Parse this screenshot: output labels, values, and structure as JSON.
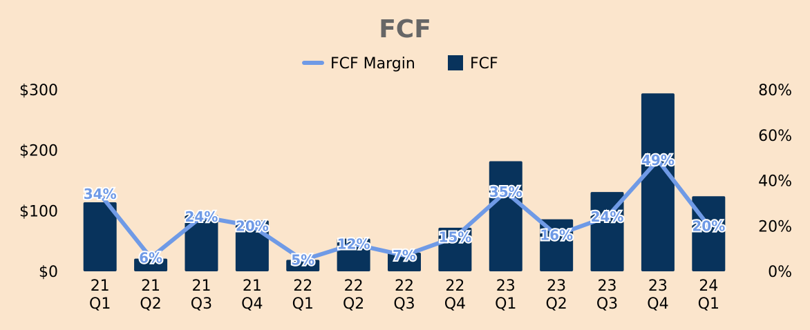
{
  "chart_data": {
    "type": "bar",
    "title": "FCF",
    "categories": [
      [
        "21",
        "Q1"
      ],
      [
        "21",
        "Q2"
      ],
      [
        "21",
        "Q3"
      ],
      [
        "21",
        "Q4"
      ],
      [
        "22",
        "Q1"
      ],
      [
        "22",
        "Q2"
      ],
      [
        "22",
        "Q3"
      ],
      [
        "22",
        "Q4"
      ],
      [
        "23",
        "Q1"
      ],
      [
        "23",
        "Q2"
      ],
      [
        "23",
        "Q3"
      ],
      [
        "23",
        "Q4"
      ],
      [
        "24",
        "Q1"
      ]
    ],
    "series": [
      {
        "name": "FCF",
        "type": "bar",
        "axis": "left",
        "color": "#08335c",
        "values": [
          114,
          21,
          93,
          84,
          19,
          54,
          31,
          72,
          182,
          86,
          131,
          294,
          124
        ]
      },
      {
        "name": "FCF Margin",
        "type": "line",
        "axis": "right",
        "color": "#6f9ae6",
        "values": [
          34,
          6,
          24,
          20,
          5,
          12,
          7,
          15,
          35,
          16,
          24,
          49,
          20
        ],
        "labels": [
          "34%",
          "6%",
          "24%",
          "20%",
          "5%",
          "12%",
          "7%",
          "15%",
          "35%",
          "16%",
          "24%",
          "49%",
          "20%"
        ]
      }
    ],
    "legend": {
      "position": "top",
      "order": [
        "FCF Margin",
        "FCF"
      ]
    },
    "y_left": {
      "min": 0,
      "max": 300,
      "ticks": [
        0,
        100,
        200,
        300
      ],
      "tick_labels": [
        "$0",
        "$100",
        "$200",
        "$300"
      ]
    },
    "y_right": {
      "min": 0,
      "max": 80,
      "ticks": [
        0,
        20,
        40,
        60,
        80
      ],
      "tick_labels": [
        "0%",
        "20%",
        "40%",
        "60%",
        "80%"
      ]
    },
    "grid": false,
    "background": "#fbe5cc"
  }
}
